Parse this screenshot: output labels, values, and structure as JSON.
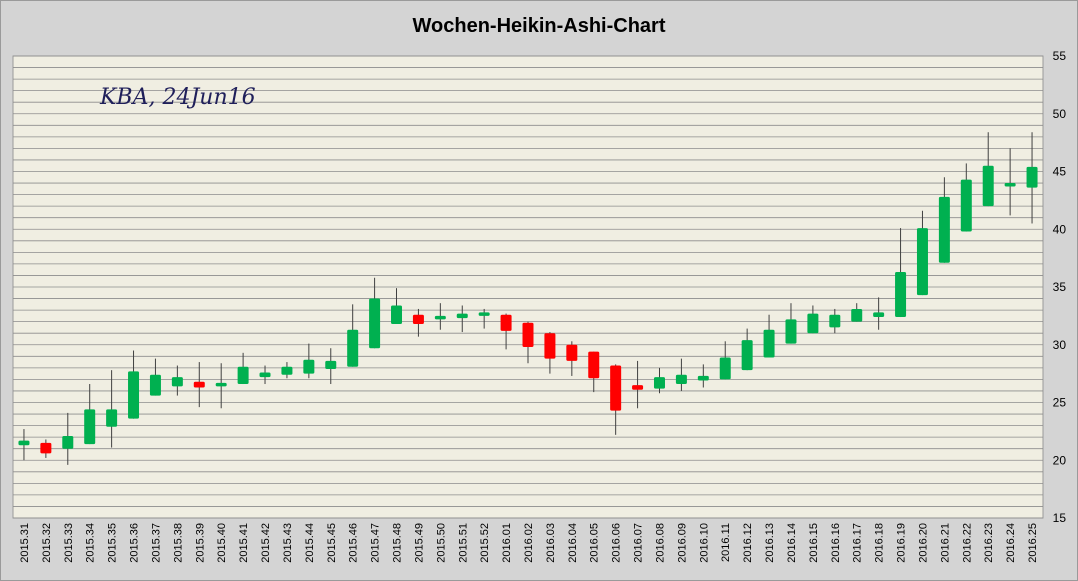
{
  "chart_data": {
    "type": "candlestick",
    "title": "Wochen-Heikin-Ashi-Chart",
    "annotation": "KBA, 24Jun16",
    "ylim": [
      15,
      55
    ],
    "yticks": [
      15,
      20,
      25,
      30,
      35,
      40,
      45,
      50,
      55
    ],
    "ytick_labels": [
      "15",
      "20",
      "25",
      "30",
      "35",
      "40",
      "45",
      "50",
      "55"
    ],
    "grid": true,
    "colors": {
      "up": "#00b050",
      "down": "#ff0000",
      "wick": "#404040",
      "plot_bg": "#f0eee2",
      "frame_bg": "#d4d4d4",
      "grid": "#8c8c8c"
    },
    "categories": [
      "2015.31",
      "2015.32",
      "2015.33",
      "2015.34",
      "2015.35",
      "2015.36",
      "2015.37",
      "2015.38",
      "2015.39",
      "2015.40",
      "2015.41",
      "2015.42",
      "2015.43",
      "2015.44",
      "2015.45",
      "2015.46",
      "2015.47",
      "2015.48",
      "2015.49",
      "2015.50",
      "2015.51",
      "2015.52",
      "2016.01",
      "2016.02",
      "2016.03",
      "2016.04",
      "2016.05",
      "2016.06",
      "2016.07",
      "2016.08",
      "2016.09",
      "2016.10",
      "2016.11",
      "2016.12",
      "2016.13",
      "2016.14",
      "2016.15",
      "2016.16",
      "2016.17",
      "2016.18",
      "2016.19",
      "2016.20",
      "2016.21",
      "2016.22",
      "2016.23",
      "2016.24",
      "2016.25"
    ],
    "open": [
      21.3,
      21.5,
      21.0,
      21.4,
      22.9,
      23.6,
      25.6,
      26.4,
      26.8,
      26.4,
      26.6,
      27.2,
      27.4,
      27.5,
      27.9,
      28.1,
      29.7,
      31.8,
      32.6,
      32.2,
      32.3,
      32.5,
      32.6,
      31.9,
      31.0,
      30.0,
      29.4,
      28.2,
      26.5,
      26.2,
      26.6,
      26.9,
      27.0,
      27.8,
      28.9,
      30.1,
      31.0,
      31.5,
      32.0,
      32.4,
      32.4,
      34.3,
      37.1,
      39.8,
      42.0,
      43.7,
      43.6
    ],
    "close": [
      21.7,
      20.6,
      22.1,
      24.4,
      24.4,
      27.7,
      27.4,
      27.2,
      26.3,
      26.7,
      28.1,
      27.6,
      28.1,
      28.7,
      28.6,
      31.3,
      34.0,
      33.4,
      31.8,
      32.5,
      32.7,
      32.8,
      31.2,
      29.8,
      28.8,
      28.6,
      27.1,
      24.3,
      26.1,
      27.2,
      27.4,
      27.3,
      28.9,
      30.4,
      31.3,
      32.2,
      32.7,
      32.6,
      33.1,
      32.8,
      36.3,
      40.1,
      42.8,
      44.3,
      45.5,
      44.0,
      45.4
    ],
    "high": [
      22.7,
      21.8,
      24.1,
      26.6,
      27.8,
      29.5,
      28.8,
      28.2,
      28.5,
      28.4,
      29.3,
      28.2,
      28.5,
      30.1,
      29.7,
      33.5,
      35.8,
      34.9,
      33.1,
      33.6,
      33.4,
      33.1,
      32.7,
      32.0,
      31.1,
      30.3,
      29.4,
      28.3,
      28.6,
      28.0,
      28.8,
      28.3,
      30.3,
      31.4,
      32.6,
      33.6,
      33.4,
      33.1,
      33.6,
      34.1,
      40.1,
      41.6,
      44.5,
      45.7,
      48.4,
      47.0,
      48.4
    ],
    "low": [
      20.0,
      20.2,
      19.6,
      21.4,
      21.1,
      23.6,
      25.6,
      25.6,
      24.6,
      24.5,
      26.6,
      26.6,
      27.1,
      27.1,
      26.6,
      28.1,
      29.7,
      31.8,
      30.7,
      31.3,
      31.1,
      31.4,
      29.6,
      28.4,
      27.5,
      27.3,
      25.9,
      22.2,
      24.5,
      25.8,
      26.0,
      26.3,
      27.0,
      27.8,
      28.9,
      30.1,
      31.0,
      31.0,
      32.0,
      31.3,
      32.4,
      34.3,
      37.1,
      39.8,
      42.0,
      41.2,
      40.5
    ]
  }
}
